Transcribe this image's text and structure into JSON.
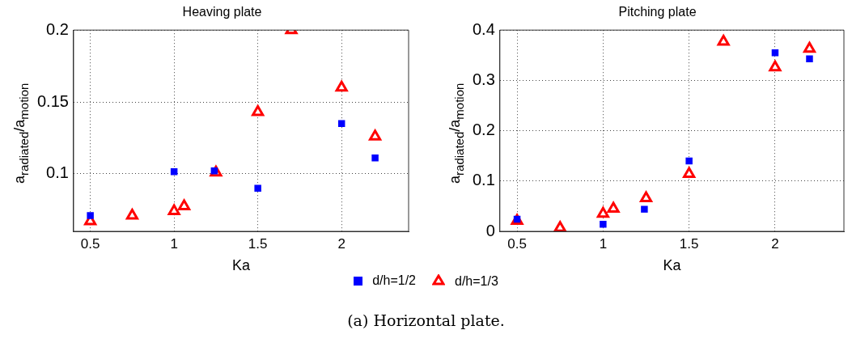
{
  "chart_data": [
    {
      "type": "scatter",
      "title": "Heaving plate",
      "xlabel": "Ka",
      "ylabel": "a$_{radiated}$/a$_{motion}$",
      "xlim": [
        0.4,
        2.4
      ],
      "xticks": [
        0.5,
        1,
        1.5,
        2
      ],
      "ylim": [
        0.06,
        0.2
      ],
      "yticks": [
        0.1,
        0.15,
        0.2
      ],
      "grid": true,
      "legend": "bottom",
      "series": [
        {
          "name": "d/h=1/2",
          "color": "#0000ff",
          "marker": "square",
          "x": [
            0.5,
            1,
            1.24,
            1.5,
            2,
            2.2
          ],
          "values": [
            0.071,
            0.1015,
            0.102,
            0.09,
            0.135,
            0.111
          ]
        },
        {
          "name": "d/h=1/3",
          "color": "#ff0000",
          "marker": "triangle",
          "x": [
            0.5,
            0.75,
            1,
            1.06,
            1.25,
            1.5,
            1.7,
            2,
            2.2
          ],
          "values": [
            0.067,
            0.071,
            0.074,
            0.0775,
            0.101,
            0.143,
            0.2,
            0.16,
            0.126
          ]
        }
      ]
    },
    {
      "type": "scatter",
      "title": "Pitching plate",
      "xlabel": "Ka",
      "ylabel": "a$_{radiated}$/a$_{motion}$",
      "xlim": [
        0.4,
        2.4
      ],
      "xticks": [
        0.5,
        1,
        1.5,
        2
      ],
      "ylim": [
        0,
        0.4
      ],
      "yticks": [
        0,
        0.1,
        0.2,
        0.3,
        0.4
      ],
      "grid": true,
      "legend": "bottom",
      "annotations": [
        "(a) Horizontal plate."
      ],
      "series": [
        {
          "name": "d/h=1/2",
          "color": "#0000ff",
          "marker": "square",
          "x": [
            0.5,
            1,
            1.24,
            1.5,
            2,
            2.2
          ],
          "values": [
            0.024,
            0.014,
            0.044,
            0.14,
            0.355,
            0.343
          ]
        },
        {
          "name": "d/h=1/3",
          "color": "#ff0000",
          "marker": "triangle",
          "x": [
            0.5,
            0.75,
            1,
            1.06,
            1.25,
            1.5,
            1.7,
            2,
            2.2
          ],
          "values": [
            0.021,
            0.007,
            0.035,
            0.045,
            0.066,
            0.114,
            0.377,
            0.326,
            0.363
          ]
        }
      ]
    }
  ]
}
